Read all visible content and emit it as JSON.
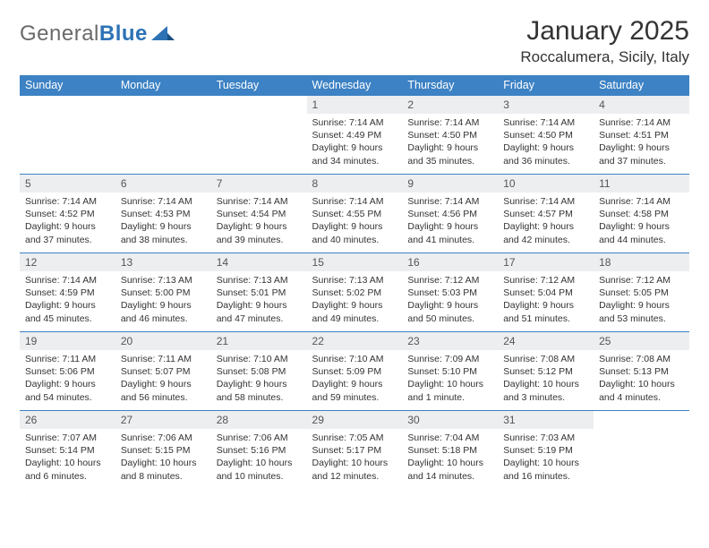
{
  "logo": {
    "text_gray": "General",
    "text_blue": "Blue"
  },
  "title": "January 2025",
  "location": "Roccalumera, Sicily, Italy",
  "colors": {
    "header_bg": "#3c82c4",
    "header_fg": "#ffffff",
    "row_divider": "#3c82c4",
    "daynum_bg": "#eceef0",
    "logo_gray": "#6a6a6a",
    "logo_blue": "#2d72b5"
  },
  "weekdays": [
    "Sunday",
    "Monday",
    "Tuesday",
    "Wednesday",
    "Thursday",
    "Friday",
    "Saturday"
  ],
  "weeks": [
    [
      null,
      null,
      null,
      {
        "n": "1",
        "sr": "7:14 AM",
        "ss": "4:49 PM",
        "dl": "9 hours and 34 minutes."
      },
      {
        "n": "2",
        "sr": "7:14 AM",
        "ss": "4:50 PM",
        "dl": "9 hours and 35 minutes."
      },
      {
        "n": "3",
        "sr": "7:14 AM",
        "ss": "4:50 PM",
        "dl": "9 hours and 36 minutes."
      },
      {
        "n": "4",
        "sr": "7:14 AM",
        "ss": "4:51 PM",
        "dl": "9 hours and 37 minutes."
      }
    ],
    [
      {
        "n": "5",
        "sr": "7:14 AM",
        "ss": "4:52 PM",
        "dl": "9 hours and 37 minutes."
      },
      {
        "n": "6",
        "sr": "7:14 AM",
        "ss": "4:53 PM",
        "dl": "9 hours and 38 minutes."
      },
      {
        "n": "7",
        "sr": "7:14 AM",
        "ss": "4:54 PM",
        "dl": "9 hours and 39 minutes."
      },
      {
        "n": "8",
        "sr": "7:14 AM",
        "ss": "4:55 PM",
        "dl": "9 hours and 40 minutes."
      },
      {
        "n": "9",
        "sr": "7:14 AM",
        "ss": "4:56 PM",
        "dl": "9 hours and 41 minutes."
      },
      {
        "n": "10",
        "sr": "7:14 AM",
        "ss": "4:57 PM",
        "dl": "9 hours and 42 minutes."
      },
      {
        "n": "11",
        "sr": "7:14 AM",
        "ss": "4:58 PM",
        "dl": "9 hours and 44 minutes."
      }
    ],
    [
      {
        "n": "12",
        "sr": "7:14 AM",
        "ss": "4:59 PM",
        "dl": "9 hours and 45 minutes."
      },
      {
        "n": "13",
        "sr": "7:13 AM",
        "ss": "5:00 PM",
        "dl": "9 hours and 46 minutes."
      },
      {
        "n": "14",
        "sr": "7:13 AM",
        "ss": "5:01 PM",
        "dl": "9 hours and 47 minutes."
      },
      {
        "n": "15",
        "sr": "7:13 AM",
        "ss": "5:02 PM",
        "dl": "9 hours and 49 minutes."
      },
      {
        "n": "16",
        "sr": "7:12 AM",
        "ss": "5:03 PM",
        "dl": "9 hours and 50 minutes."
      },
      {
        "n": "17",
        "sr": "7:12 AM",
        "ss": "5:04 PM",
        "dl": "9 hours and 51 minutes."
      },
      {
        "n": "18",
        "sr": "7:12 AM",
        "ss": "5:05 PM",
        "dl": "9 hours and 53 minutes."
      }
    ],
    [
      {
        "n": "19",
        "sr": "7:11 AM",
        "ss": "5:06 PM",
        "dl": "9 hours and 54 minutes."
      },
      {
        "n": "20",
        "sr": "7:11 AM",
        "ss": "5:07 PM",
        "dl": "9 hours and 56 minutes."
      },
      {
        "n": "21",
        "sr": "7:10 AM",
        "ss": "5:08 PM",
        "dl": "9 hours and 58 minutes."
      },
      {
        "n": "22",
        "sr": "7:10 AM",
        "ss": "5:09 PM",
        "dl": "9 hours and 59 minutes."
      },
      {
        "n": "23",
        "sr": "7:09 AM",
        "ss": "5:10 PM",
        "dl": "10 hours and 1 minute."
      },
      {
        "n": "24",
        "sr": "7:08 AM",
        "ss": "5:12 PM",
        "dl": "10 hours and 3 minutes."
      },
      {
        "n": "25",
        "sr": "7:08 AM",
        "ss": "5:13 PM",
        "dl": "10 hours and 4 minutes."
      }
    ],
    [
      {
        "n": "26",
        "sr": "7:07 AM",
        "ss": "5:14 PM",
        "dl": "10 hours and 6 minutes."
      },
      {
        "n": "27",
        "sr": "7:06 AM",
        "ss": "5:15 PM",
        "dl": "10 hours and 8 minutes."
      },
      {
        "n": "28",
        "sr": "7:06 AM",
        "ss": "5:16 PM",
        "dl": "10 hours and 10 minutes."
      },
      {
        "n": "29",
        "sr": "7:05 AM",
        "ss": "5:17 PM",
        "dl": "10 hours and 12 minutes."
      },
      {
        "n": "30",
        "sr": "7:04 AM",
        "ss": "5:18 PM",
        "dl": "10 hours and 14 minutes."
      },
      {
        "n": "31",
        "sr": "7:03 AM",
        "ss": "5:19 PM",
        "dl": "10 hours and 16 minutes."
      },
      null
    ]
  ],
  "labels": {
    "sunrise": "Sunrise:",
    "sunset": "Sunset:",
    "daylight": "Daylight:"
  }
}
